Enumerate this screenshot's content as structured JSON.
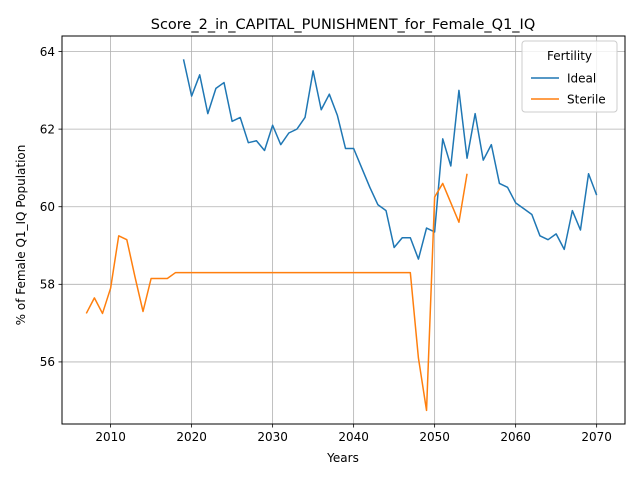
{
  "chart_data": {
    "type": "line",
    "title": "Score_2_in_CAPITAL_PUNISHMENT_for_Female_Q1_IQ",
    "xlabel": "Years",
    "ylabel": "% of Female Q1_IQ Population",
    "xlim": [
      2004,
      2073.5
    ],
    "ylim": [
      54.4,
      64.4
    ],
    "xticks": [
      2010,
      2020,
      2030,
      2040,
      2050,
      2060,
      2070
    ],
    "yticks": [
      56,
      58,
      60,
      62,
      64
    ],
    "grid": true,
    "legend": {
      "title": "Fertility",
      "placement": "top-right"
    },
    "series": [
      {
        "name": "Ideal",
        "color": "#1f77b4",
        "x": [
          2019,
          2020,
          2021,
          2022,
          2023,
          2024,
          2025,
          2026,
          2027,
          2028,
          2029,
          2030,
          2031,
          2032,
          2033,
          2034,
          2035,
          2036,
          2037,
          2038,
          2039,
          2040,
          2041,
          2042,
          2043,
          2044,
          2045,
          2046,
          2047,
          2048,
          2049,
          2050,
          2051,
          2052,
          2053,
          2054,
          2055,
          2056,
          2057,
          2058,
          2059,
          2060,
          2061,
          2062,
          2063,
          2064,
          2065,
          2066,
          2067,
          2068,
          2069,
          2070
        ],
        "y": [
          63.8,
          62.85,
          63.4,
          62.4,
          63.05,
          63.2,
          62.2,
          62.3,
          61.65,
          61.7,
          61.45,
          62.1,
          61.6,
          61.9,
          62.0,
          62.3,
          63.5,
          62.5,
          62.9,
          62.35,
          61.5,
          61.5,
          61.0,
          60.5,
          60.05,
          59.9,
          58.95,
          59.2,
          59.2,
          58.65,
          59.45,
          59.35,
          61.75,
          61.05,
          63.0,
          61.25,
          62.4,
          61.2,
          61.6,
          60.6,
          60.5,
          60.1,
          59.95,
          59.8,
          59.25,
          59.15,
          59.3,
          58.9,
          59.9,
          59.4,
          60.85,
          60.3
        ]
      },
      {
        "name": "Sterile",
        "color": "#ff7f0e",
        "x": [
          2007,
          2008,
          2009,
          2010,
          2011,
          2012,
          2013,
          2014,
          2015,
          2016,
          2017,
          2018,
          2019,
          2020,
          2021,
          2022,
          2023,
          2024,
          2025,
          2026,
          2027,
          2028,
          2029,
          2030,
          2031,
          2032,
          2033,
          2034,
          2035,
          2036,
          2037,
          2038,
          2039,
          2040,
          2041,
          2042,
          2043,
          2044,
          2045,
          2046,
          2047,
          2048,
          2049,
          2050,
          2051,
          2052,
          2053,
          2054
        ],
        "y": [
          57.25,
          57.65,
          57.25,
          57.9,
          59.25,
          59.15,
          58.2,
          57.3,
          58.15,
          58.15,
          58.15,
          58.3,
          58.3,
          58.3,
          58.3,
          58.3,
          58.3,
          58.3,
          58.3,
          58.3,
          58.3,
          58.3,
          58.3,
          58.3,
          58.3,
          58.3,
          58.3,
          58.3,
          58.3,
          58.3,
          58.3,
          58.3,
          58.3,
          58.3,
          58.3,
          58.3,
          58.3,
          58.3,
          58.3,
          58.3,
          58.3,
          56.1,
          54.75,
          60.25,
          60.6,
          60.1,
          59.6,
          60.85
        ]
      }
    ]
  }
}
